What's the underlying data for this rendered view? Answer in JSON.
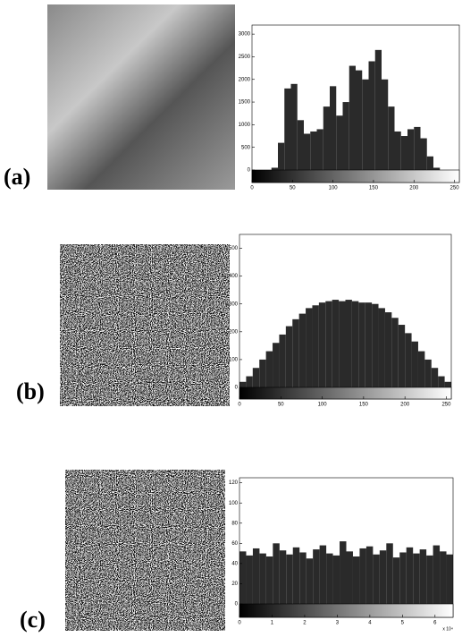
{
  "chart_data": [
    {
      "type": "histogram",
      "label": "(a)",
      "color": "#2a2a2a",
      "bins": [
        0,
        8,
        16,
        24,
        32,
        40,
        48,
        56,
        64,
        72,
        80,
        88,
        96,
        104,
        112,
        120,
        128,
        136,
        144,
        152,
        160,
        168,
        176,
        184,
        192,
        200,
        208,
        216,
        224,
        232,
        240,
        248,
        256
      ],
      "values": [
        0,
        0,
        0,
        50,
        600,
        1800,
        1900,
        1100,
        800,
        850,
        900,
        1400,
        1850,
        1200,
        1500,
        2300,
        2200,
        2000,
        2400,
        2650,
        2000,
        1400,
        850,
        750,
        900,
        950,
        700,
        300,
        50,
        0,
        0,
        0
      ],
      "xlim": [
        0,
        256
      ],
      "ylim": [
        0,
        3200
      ],
      "xticks": [
        0,
        50,
        100,
        150,
        200,
        250
      ],
      "yticks": [
        0,
        500,
        1000,
        1500,
        2000,
        2500,
        3000
      ]
    },
    {
      "type": "histogram",
      "label": "(b)",
      "color": "#2a2a2a",
      "bins": [
        0,
        8,
        16,
        24,
        32,
        40,
        48,
        56,
        64,
        72,
        80,
        88,
        96,
        104,
        112,
        120,
        128,
        136,
        144,
        152,
        160,
        168,
        176,
        184,
        192,
        200,
        208,
        216,
        224,
        232,
        240,
        248,
        256
      ],
      "values": [
        20,
        40,
        70,
        100,
        130,
        160,
        190,
        220,
        245,
        265,
        285,
        295,
        305,
        310,
        315,
        310,
        315,
        310,
        305,
        305,
        300,
        285,
        270,
        250,
        225,
        195,
        165,
        130,
        100,
        70,
        40,
        20
      ],
      "xlim": [
        0,
        256
      ],
      "ylim": [
        0,
        550
      ],
      "xticks": [
        0,
        50,
        100,
        150,
        200,
        250
      ],
      "yticks": [
        0,
        100,
        200,
        300,
        400,
        500
      ]
    },
    {
      "type": "histogram",
      "label": "(c)",
      "color": "#2a2a2a",
      "x_exponent_label": "x 10⁴",
      "bins": [
        0,
        0.2048,
        0.4096,
        0.6144,
        0.8192,
        1.024,
        1.2288,
        1.4336,
        1.6384,
        1.8432,
        2.048,
        2.2528,
        2.4576,
        2.6624,
        2.8672,
        3.072,
        3.2768,
        3.4816,
        3.6864,
        3.8912,
        4.096,
        4.3008,
        4.5056,
        4.7104,
        4.9152,
        5.12,
        5.3248,
        5.5296,
        5.7344,
        5.9392,
        6.144,
        6.3488,
        6.5536
      ],
      "values": [
        52,
        48,
        55,
        50,
        47,
        60,
        53,
        49,
        56,
        51,
        45,
        54,
        58,
        50,
        48,
        62,
        52,
        47,
        55,
        57,
        49,
        53,
        60,
        46,
        51,
        56,
        50,
        54,
        48,
        58,
        52,
        49
      ],
      "xlim": [
        0,
        6.5536
      ],
      "ylim": [
        0,
        125
      ],
      "xticks": [
        0,
        1,
        2,
        3,
        4,
        5,
        6
      ],
      "yticks": [
        0,
        20,
        40,
        60,
        80,
        100,
        120
      ]
    }
  ]
}
